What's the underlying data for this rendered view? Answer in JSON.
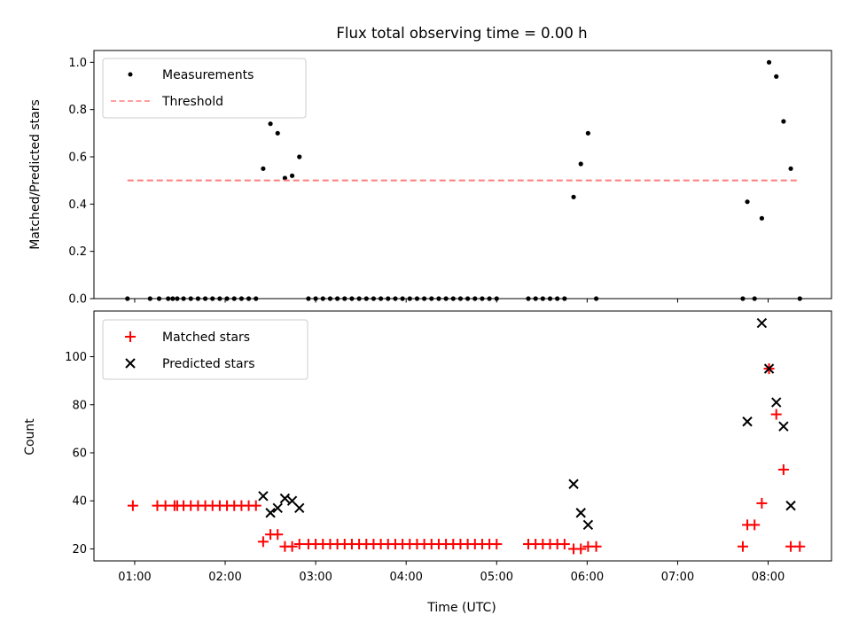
{
  "chart_data": {
    "title": "Flux total observing time = 0.00 h",
    "xlabel": "Time (UTC)",
    "x_units": "hours UTC",
    "xlim": [
      0.55,
      8.7
    ],
    "xticks": [
      {
        "value": 1,
        "label": "01:00"
      },
      {
        "value": 2,
        "label": "02:00"
      },
      {
        "value": 3,
        "label": "03:00"
      },
      {
        "value": 4,
        "label": "04:00"
      },
      {
        "value": 5,
        "label": "05:00"
      },
      {
        "value": 6,
        "label": "06:00"
      },
      {
        "value": 7,
        "label": "07:00"
      },
      {
        "value": 8,
        "label": "08:00"
      }
    ],
    "panels": [
      {
        "type": "scatter",
        "ylabel": "Matched/Predicted stars",
        "ylim": [
          0,
          1.05
        ],
        "yticks": [
          {
            "value": 0,
            "label": "0.0"
          },
          {
            "value": 0.2,
            "label": "0.2"
          },
          {
            "value": 0.4,
            "label": "0.4"
          },
          {
            "value": 0.6,
            "label": "0.6"
          },
          {
            "value": 0.8,
            "label": "0.8"
          },
          {
            "value": 1.0,
            "label": "1.0"
          }
        ],
        "legend_position": "upper-left",
        "series": [
          {
            "name": "Measurements",
            "marker": "dot",
            "color": "#000000",
            "x": [
              0.92,
              1.17,
              1.27,
              1.37,
              1.42,
              1.47,
              1.54,
              1.62,
              1.7,
              1.78,
              1.86,
              1.94,
              2.02,
              2.1,
              2.18,
              2.26,
              2.34,
              2.42,
              2.5,
              2.58,
              2.66,
              2.74,
              2.82,
              2.92,
              3.0,
              3.08,
              3.16,
              3.24,
              3.32,
              3.4,
              3.48,
              3.56,
              3.64,
              3.72,
              3.8,
              3.88,
              3.96,
              4.04,
              4.12,
              4.2,
              4.28,
              4.36,
              4.44,
              4.52,
              4.6,
              4.68,
              4.76,
              4.84,
              4.92,
              5.0,
              5.35,
              5.43,
              5.51,
              5.59,
              5.67,
              5.75,
              5.85,
              5.93,
              6.01,
              6.1,
              7.72,
              7.77,
              7.85,
              7.93,
              8.01,
              8.09,
              8.17,
              8.25,
              8.35
            ],
            "y": [
              0,
              0,
              0,
              0,
              0,
              0,
              0,
              0,
              0,
              0,
              0,
              0,
              0,
              0,
              0,
              0,
              0,
              0.55,
              0.74,
              0.7,
              0.51,
              0.52,
              0.6,
              0,
              0,
              0,
              0,
              0,
              0,
              0,
              0,
              0,
              0,
              0,
              0,
              0,
              0,
              0,
              0,
              0,
              0,
              0,
              0,
              0,
              0,
              0,
              0,
              0,
              0,
              0,
              0,
              0,
              0,
              0,
              0,
              0,
              0.43,
              0.57,
              0.7,
              0,
              0,
              0.41,
              0,
              0.34,
              1.0,
              0.94,
              0.75,
              0.55,
              0
            ]
          },
          {
            "name": "Threshold",
            "marker": "dashed-line",
            "color": "#ff7f7f",
            "x": [
              0.92,
              8.35
            ],
            "y": [
              0.5,
              0.5
            ]
          }
        ]
      },
      {
        "type": "scatter",
        "ylabel": "Count",
        "ylim": [
          15,
          119
        ],
        "yticks": [
          {
            "value": 20,
            "label": "20"
          },
          {
            "value": 40,
            "label": "40"
          },
          {
            "value": 60,
            "label": "60"
          },
          {
            "value": 80,
            "label": "80"
          },
          {
            "value": 100,
            "label": "100"
          }
        ],
        "legend_position": "upper-left",
        "series": [
          {
            "name": "Matched stars",
            "marker": "plus",
            "color": "#ff0000",
            "x": [
              0.98,
              1.25,
              1.34,
              1.44,
              1.47,
              1.54,
              1.62,
              1.7,
              1.78,
              1.86,
              1.94,
              2.02,
              2.1,
              2.18,
              2.26,
              2.34,
              2.42,
              2.5,
              2.58,
              2.66,
              2.74,
              2.82,
              2.92,
              3.0,
              3.08,
              3.16,
              3.24,
              3.32,
              3.4,
              3.48,
              3.56,
              3.64,
              3.72,
              3.8,
              3.88,
              3.96,
              4.04,
              4.12,
              4.2,
              4.28,
              4.36,
              4.44,
              4.52,
              4.6,
              4.68,
              4.76,
              4.84,
              4.92,
              5.0,
              5.35,
              5.43,
              5.51,
              5.59,
              5.67,
              5.75,
              5.85,
              5.93,
              6.01,
              6.1,
              7.72,
              7.77,
              7.85,
              7.93,
              8.01,
              8.09,
              8.17,
              8.25,
              8.35
            ],
            "y": [
              38,
              38,
              38,
              38,
              38,
              38,
              38,
              38,
              38,
              38,
              38,
              38,
              38,
              38,
              38,
              38,
              23,
              26,
              26,
              21,
              21,
              22,
              22,
              22,
              22,
              22,
              22,
              22,
              22,
              22,
              22,
              22,
              22,
              22,
              22,
              22,
              22,
              22,
              22,
              22,
              22,
              22,
              22,
              22,
              22,
              22,
              22,
              22,
              22,
              22,
              22,
              22,
              22,
              22,
              22,
              20,
              20,
              21,
              21,
              21,
              30,
              30,
              39,
              95,
              76,
              53,
              21,
              21
            ]
          },
          {
            "name": "Predicted stars",
            "marker": "x",
            "color": "#000000",
            "x": [
              2.42,
              2.5,
              2.58,
              2.66,
              2.74,
              2.82,
              5.85,
              5.93,
              6.01,
              7.77,
              7.93,
              8.01,
              8.09,
              8.17,
              8.25
            ],
            "y": [
              42,
              35,
              37,
              41,
              40,
              37,
              47,
              35,
              30,
              73,
              114,
              95,
              81,
              71,
              38
            ]
          }
        ]
      }
    ]
  }
}
